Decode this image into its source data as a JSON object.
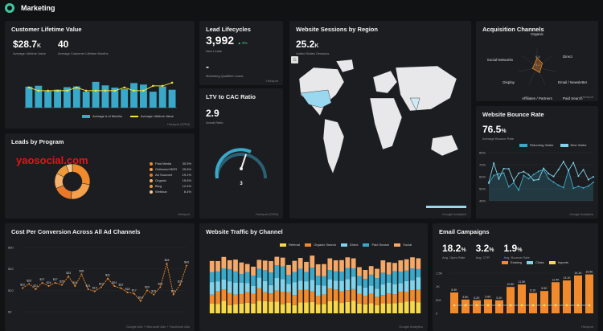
{
  "header": {
    "title": "Marketing",
    "logo_icon": "marketing-logo-icon"
  },
  "clv": {
    "title": "Customer Lifetime Value",
    "kpi1_value": "$28.7",
    "kpi1_suffix": "K",
    "kpi1_label": "Average Lifetime Value",
    "kpi2_value": "40",
    "kpi2_label": "Average Customer Lifetime Months",
    "legend": [
      "Average # of Months",
      "Average Lifetime Value"
    ],
    "source": "Hubspot (CRM)",
    "colors": {
      "bar": "#3aa8c9",
      "line": "#f2e43a"
    }
  },
  "lead_life": {
    "title": "Lead Lifecycles",
    "value": "3,992",
    "delta": "▲ 8%",
    "label1": "New Leads",
    "dash": "-",
    "label2": "Marketing Qualified Leads",
    "source": "Hubspot"
  },
  "ltv": {
    "title": "LTV to CAC Ratio",
    "value": "2.9",
    "label": "Actual Ratio",
    "gauge_value": "3",
    "source": "Hubspot (CRM)"
  },
  "sessions": {
    "title": "Website Sessions by Region",
    "value": "25.2",
    "suffix": "K",
    "label": "United States Sessions",
    "source": "Google Analytics",
    "home_icon": "home-icon"
  },
  "acq": {
    "title": "Acquisition Channels",
    "labels": [
      "Organic",
      "Direct",
      "Email / Newsletter",
      "Paid Search",
      "Affiliates / Partners",
      "Display",
      "Social Networks"
    ],
    "rings": [
      "0.4",
      "0.2"
    ],
    "source": "Hubspot"
  },
  "bounce": {
    "title": "Website Bounce Rate",
    "value": "76.5",
    "suffix": "%",
    "label": "Average Bounce Rate",
    "legend": [
      "Returning Visitor",
      "New Visitor"
    ],
    "yticks": [
      "80%",
      "70%",
      "60%",
      "50%",
      "40%"
    ],
    "source": "Google Analytics"
  },
  "leads_prog": {
    "title": "Leads by Program",
    "watermark": "yaosocial.com",
    "legend": [
      {
        "label": "Paid Media",
        "pct": "30.5%"
      },
      {
        "label": "Outbound BDR",
        "pct": "25.6%"
      },
      {
        "label": "Ad Sourced",
        "pct": "19.1%"
      },
      {
        "label": "Organic",
        "pct": "15.6%"
      },
      {
        "label": "Blog",
        "pct": "12.4%"
      },
      {
        "label": "Webinar",
        "pct": "6.4%"
      }
    ],
    "source": "Hubspot"
  },
  "cpc": {
    "title": "Cost Per Conversion Across All Ad Channels",
    "yticks": [
      "$60",
      "$40",
      "$20",
      "$0"
    ],
    "point_labels": [
      "$22",
      "$26",
      "$21",
      "$27",
      "$24",
      "$27",
      "$25",
      "$33",
      "$24",
      "$35",
      "$21",
      "$19",
      "$23",
      "$31",
      "$24",
      "$22",
      "$18",
      "$17",
      "$10",
      "$20",
      "$16",
      "$23",
      "$45",
      "$16",
      "$25",
      "$43"
    ],
    "source": "Google Ads + Microsoft Ads + Facebook Ads",
    "color": "#f08a2c"
  },
  "traffic": {
    "title": "Website Traffic by Channel",
    "legend": [
      "Referral",
      "Organic Search",
      "Direct",
      "Paid Search",
      "Social"
    ],
    "source": "Google Analytics"
  },
  "email": {
    "title": "Email Campaigns",
    "kpis": [
      {
        "value": "18.2",
        "suffix": "%",
        "label": "Avg. Open Rate"
      },
      {
        "value": "3.2",
        "suffix": "%",
        "label": "Avg. CTR"
      },
      {
        "value": "1.9",
        "suffix": "%",
        "label": "Avg. Bounce Rate"
      }
    ],
    "legend": [
      "Existing",
      "Clicks",
      "Imports"
    ],
    "yticks": [
      "1.5K",
      "1K",
      "500",
      "0"
    ],
    "bar_labels": [
      "8.3K",
      "5.5K",
      "5.2K",
      "5.6K",
      "5.2K",
      "10.5K",
      "11.5K",
      "8.1K",
      "8.9K",
      "12.4K",
      "13.1K",
      "15.1K",
      "15.5K"
    ],
    "source": "Hubspot"
  }
}
